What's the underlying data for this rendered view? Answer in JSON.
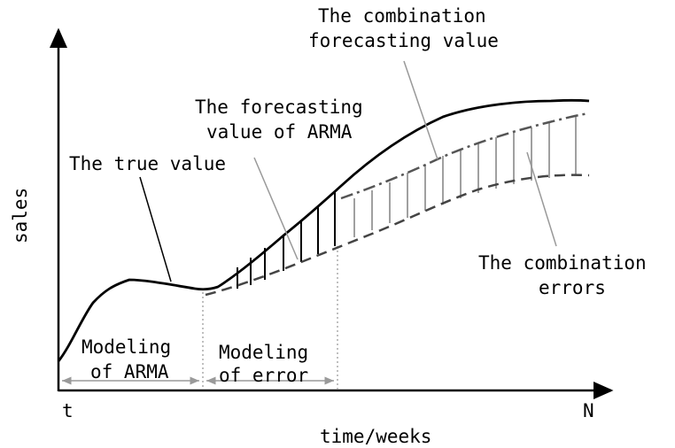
{
  "axes": {
    "y_label": "sales",
    "x_label": "time/weeks",
    "x_start": "t",
    "x_end": "N"
  },
  "annotations": {
    "true_value": "The true value",
    "arma_forecast_line1": "The forecasting",
    "arma_forecast_line2": "value of ARMA",
    "combo_forecast_line1": "The combination",
    "combo_forecast_line2": "forecasting value",
    "combo_errors_line1": "The combination",
    "combo_errors_line2": "errors"
  },
  "phases": {
    "modeling_arma_line1": "Modeling",
    "modeling_arma_line2": "of ARMA",
    "modeling_error_line1": "Modeling",
    "modeling_error_line2": "of error"
  },
  "colors": {
    "true_line": "#000000",
    "arma_line": "#444444",
    "combo_line": "#555555",
    "error_bars": "#999999",
    "leader": "#888888"
  }
}
